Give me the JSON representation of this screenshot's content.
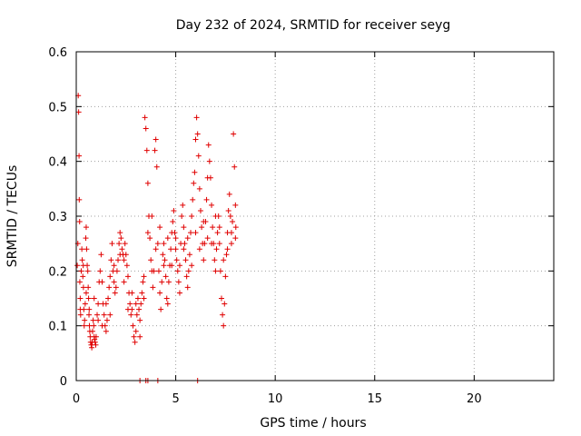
{
  "chart_data": {
    "type": "scatter",
    "title": "Day 232 of 2024, SRMTID for receiver seyg",
    "xlabel": "GPS time / hours",
    "ylabel": "SRMTID / TECUs",
    "xlim": [
      0,
      24
    ],
    "ylim": [
      0,
      0.6
    ],
    "x_ticks": [
      0,
      5,
      10,
      15,
      20
    ],
    "x_tick_labels": [
      "0",
      "5",
      "10",
      "15",
      "20"
    ],
    "y_ticks": [
      0,
      0.1,
      0.2,
      0.3,
      0.4,
      0.5,
      0.6
    ],
    "y_tick_labels": [
      "0",
      "0.1",
      "0.2",
      "0.3",
      "0.4",
      "0.5",
      "0.6"
    ],
    "grid": true,
    "marker": "+",
    "colors": {
      "series": "#e00000",
      "grid": "#a0a0a0",
      "axes": "#000000"
    },
    "series": [
      {
        "name": "SRMTID",
        "points": [
          [
            0.05,
            0.21
          ],
          [
            0.08,
            0.25
          ],
          [
            0.1,
            0.52
          ],
          [
            0.12,
            0.49
          ],
          [
            0.14,
            0.41
          ],
          [
            0.15,
            0.33
          ],
          [
            0.17,
            0.29
          ],
          [
            0.18,
            0.18
          ],
          [
            0.2,
            0.15
          ],
          [
            0.22,
            0.12
          ],
          [
            0.25,
            0.2
          ],
          [
            0.28,
            0.24
          ],
          [
            0.3,
            0.22
          ],
          [
            0.33,
            0.19
          ],
          [
            0.36,
            0.17
          ],
          [
            0.38,
            0.13
          ],
          [
            0.4,
            0.1
          ],
          [
            0.42,
            0.11
          ],
          [
            0.45,
            0.14
          ],
          [
            0.48,
            0.26
          ],
          [
            0.5,
            0.28
          ],
          [
            0.52,
            0.24
          ],
          [
            0.55,
            0.21
          ],
          [
            0.58,
            0.2
          ],
          [
            0.6,
            0.17
          ],
          [
            0.62,
            0.15
          ],
          [
            0.64,
            0.12
          ],
          [
            0.66,
            0.1
          ],
          [
            0.68,
            0.09
          ],
          [
            0.7,
            0.08
          ],
          [
            0.72,
            0.07
          ],
          [
            0.75,
            0.065
          ],
          [
            0.78,
            0.06
          ],
          [
            0.8,
            0.07
          ],
          [
            0.82,
            0.09
          ],
          [
            0.85,
            0.11
          ],
          [
            0.88,
            0.1
          ],
          [
            0.9,
            0.08
          ],
          [
            0.92,
            0.075
          ],
          [
            0.95,
            0.07
          ],
          [
            0.98,
            0.065
          ],
          [
            1.0,
            0.08
          ],
          [
            1.05,
            0.12
          ],
          [
            1.1,
            0.14
          ],
          [
            1.15,
            0.18
          ],
          [
            1.2,
            0.2
          ],
          [
            1.25,
            0.23
          ],
          [
            1.3,
            0.18
          ],
          [
            1.35,
            0.14
          ],
          [
            1.4,
            0.12
          ],
          [
            1.45,
            0.1
          ],
          [
            1.5,
            0.09
          ],
          [
            1.55,
            0.11
          ],
          [
            1.6,
            0.15
          ],
          [
            1.65,
            0.17
          ],
          [
            1.7,
            0.19
          ],
          [
            1.75,
            0.22
          ],
          [
            1.8,
            0.25
          ],
          [
            1.85,
            0.2
          ],
          [
            1.9,
            0.18
          ],
          [
            1.95,
            0.16
          ],
          [
            2.0,
            0.17
          ],
          [
            2.05,
            0.2
          ],
          [
            2.1,
            0.22
          ],
          [
            2.15,
            0.25
          ],
          [
            2.2,
            0.27
          ],
          [
            2.25,
            0.26
          ],
          [
            2.3,
            0.24
          ],
          [
            2.35,
            0.23
          ],
          [
            2.4,
            0.22
          ],
          [
            2.45,
            0.25
          ],
          [
            2.5,
            0.23
          ],
          [
            2.55,
            0.21
          ],
          [
            2.6,
            0.19
          ],
          [
            2.65,
            0.16
          ],
          [
            2.7,
            0.14
          ],
          [
            2.75,
            0.12
          ],
          [
            2.8,
            0.13
          ],
          [
            2.85,
            0.1
          ],
          [
            2.9,
            0.08
          ],
          [
            2.95,
            0.07
          ],
          [
            3.0,
            0.09
          ],
          [
            3.05,
            0.12
          ],
          [
            3.1,
            0.15
          ],
          [
            3.15,
            0.13
          ],
          [
            3.2,
            0.11
          ],
          [
            3.25,
            0.14
          ],
          [
            3.3,
            0.16
          ],
          [
            3.35,
            0.18
          ],
          [
            3.4,
            0.19
          ],
          [
            3.45,
            0.48
          ],
          [
            3.5,
            0.46
          ],
          [
            3.55,
            0.42
          ],
          [
            3.6,
            0.36
          ],
          [
            3.65,
            0.3
          ],
          [
            3.7,
            0.26
          ],
          [
            3.75,
            0.22
          ],
          [
            3.8,
            0.2
          ],
          [
            3.85,
            0.17
          ],
          [
            3.9,
            0.2
          ],
          [
            3.95,
            0.42
          ],
          [
            4.0,
            0.44
          ],
          [
            4.05,
            0.39
          ],
          [
            4.1,
            0.25
          ],
          [
            4.15,
            0.2
          ],
          [
            4.2,
            0.16
          ],
          [
            4.25,
            0.13
          ],
          [
            4.3,
            0.18
          ],
          [
            4.35,
            0.23
          ],
          [
            4.4,
            0.25
          ],
          [
            4.45,
            0.22
          ],
          [
            4.5,
            0.19
          ],
          [
            4.55,
            0.15
          ],
          [
            4.6,
            0.14
          ],
          [
            4.65,
            0.18
          ],
          [
            4.7,
            0.21
          ],
          [
            4.75,
            0.24
          ],
          [
            4.8,
            0.27
          ],
          [
            4.85,
            0.29
          ],
          [
            4.9,
            0.31
          ],
          [
            4.95,
            0.27
          ],
          [
            5.0,
            0.24
          ],
          [
            5.05,
            0.22
          ],
          [
            5.1,
            0.2
          ],
          [
            5.15,
            0.18
          ],
          [
            5.2,
            0.21
          ],
          [
            5.25,
            0.25
          ],
          [
            5.3,
            0.3
          ],
          [
            5.35,
            0.32
          ],
          [
            5.4,
            0.28
          ],
          [
            5.45,
            0.25
          ],
          [
            5.5,
            0.22
          ],
          [
            5.55,
            0.19
          ],
          [
            5.6,
            0.17
          ],
          [
            5.65,
            0.2
          ],
          [
            5.7,
            0.23
          ],
          [
            5.75,
            0.27
          ],
          [
            5.8,
            0.3
          ],
          [
            5.85,
            0.33
          ],
          [
            5.9,
            0.36
          ],
          [
            5.95,
            0.38
          ],
          [
            6.0,
            0.44
          ],
          [
            6.05,
            0.48
          ],
          [
            6.1,
            0.45
          ],
          [
            6.15,
            0.41
          ],
          [
            6.2,
            0.35
          ],
          [
            6.25,
            0.31
          ],
          [
            6.3,
            0.28
          ],
          [
            6.35,
            0.25
          ],
          [
            6.4,
            0.22
          ],
          [
            6.45,
            0.25
          ],
          [
            6.5,
            0.29
          ],
          [
            6.55,
            0.33
          ],
          [
            6.6,
            0.37
          ],
          [
            6.65,
            0.43
          ],
          [
            6.7,
            0.4
          ],
          [
            6.75,
            0.37
          ],
          [
            6.8,
            0.32
          ],
          [
            6.85,
            0.28
          ],
          [
            6.9,
            0.25
          ],
          [
            6.95,
            0.22
          ],
          [
            7.0,
            0.2
          ],
          [
            7.05,
            0.24
          ],
          [
            7.1,
            0.27
          ],
          [
            7.15,
            0.3
          ],
          [
            7.2,
            0.25
          ],
          [
            7.25,
            0.2
          ],
          [
            7.3,
            0.15
          ],
          [
            7.35,
            0.12
          ],
          [
            7.4,
            0.1
          ],
          [
            7.45,
            0.14
          ],
          [
            7.5,
            0.19
          ],
          [
            7.55,
            0.23
          ],
          [
            7.6,
            0.27
          ],
          [
            7.65,
            0.31
          ],
          [
            7.7,
            0.34
          ],
          [
            7.75,
            0.3
          ],
          [
            7.8,
            0.27
          ],
          [
            7.85,
            0.29
          ],
          [
            7.9,
            0.45
          ],
          [
            7.95,
            0.39
          ],
          [
            8.0,
            0.32
          ],
          [
            8.02,
            0.28
          ],
          [
            0.2,
            0.13
          ],
          [
            0.35,
            0.21
          ],
          [
            0.5,
            0.16
          ],
          [
            0.65,
            0.13
          ],
          [
            0.9,
            0.15
          ],
          [
            1.1,
            0.11
          ],
          [
            1.3,
            0.1
          ],
          [
            1.5,
            0.14
          ],
          [
            1.7,
            0.12
          ],
          [
            1.9,
            0.21
          ],
          [
            2.2,
            0.23
          ],
          [
            2.4,
            0.18
          ],
          [
            2.6,
            0.13
          ],
          [
            2.8,
            0.16
          ],
          [
            3.0,
            0.14
          ],
          [
            3.2,
            0.08
          ],
          [
            3.4,
            0.15
          ],
          [
            3.6,
            0.27
          ],
          [
            3.8,
            0.3
          ],
          [
            4.0,
            0.24
          ],
          [
            4.2,
            0.28
          ],
          [
            4.4,
            0.21
          ],
          [
            4.6,
            0.26
          ],
          [
            4.8,
            0.21
          ],
          [
            5.0,
            0.26
          ],
          [
            5.2,
            0.16
          ],
          [
            5.4,
            0.24
          ],
          [
            5.6,
            0.26
          ],
          [
            5.8,
            0.21
          ],
          [
            6.0,
            0.27
          ],
          [
            6.2,
            0.24
          ],
          [
            6.4,
            0.29
          ],
          [
            6.6,
            0.26
          ],
          [
            6.8,
            0.25
          ],
          [
            7.0,
            0.3
          ],
          [
            7.2,
            0.28
          ],
          [
            7.4,
            0.22
          ],
          [
            7.6,
            0.24
          ],
          [
            7.8,
            0.25
          ],
          [
            8.0,
            0.26
          ],
          [
            3.2,
            0.0
          ],
          [
            3.5,
            0.0
          ],
          [
            3.6,
            0.0
          ],
          [
            4.1,
            0.0
          ],
          [
            6.1,
            0.0
          ]
        ]
      }
    ]
  }
}
